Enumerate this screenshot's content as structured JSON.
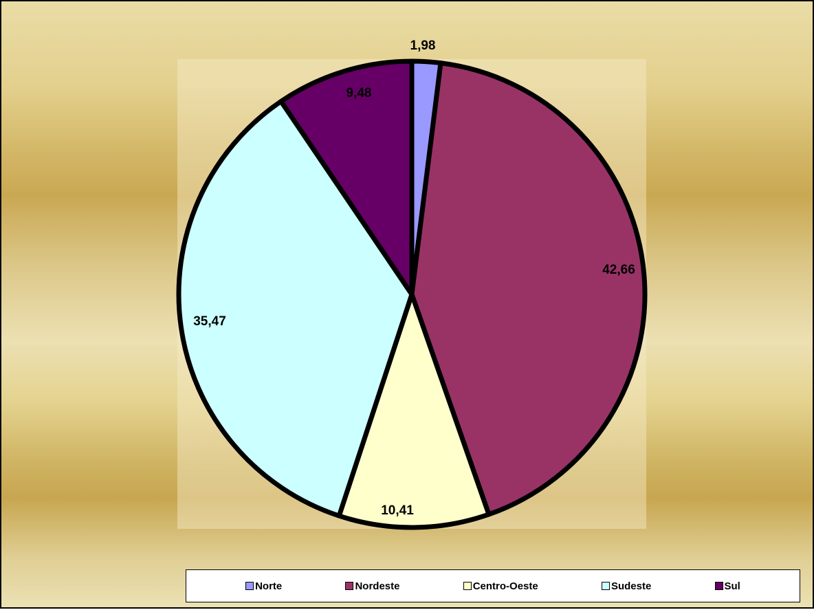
{
  "chart_data": {
    "type": "pie",
    "categories": [
      "Norte",
      "Nordeste",
      "Centro-Oeste",
      "Sudeste",
      "Sul"
    ],
    "values": [
      1.98,
      42.66,
      10.41,
      35.47,
      9.48
    ],
    "data_labels": [
      "1,98",
      "42,66",
      "10,41",
      "35,47",
      "9,48"
    ],
    "colors": [
      "#9999ff",
      "#993366",
      "#ffffcc",
      "#ccffff",
      "#660066"
    ],
    "start_angle": "12 o'clock",
    "direction": "clockwise",
    "legend_placement": "bottom"
  },
  "legend": {
    "items": [
      {
        "label": "Norte",
        "color": "#9999ff"
      },
      {
        "label": "Nordeste",
        "color": "#993366"
      },
      {
        "label": "Centro-Oeste",
        "color": "#ffffcc"
      },
      {
        "label": "Sudeste",
        "color": "#ccffff"
      },
      {
        "label": "Sul",
        "color": "#660066"
      }
    ]
  }
}
